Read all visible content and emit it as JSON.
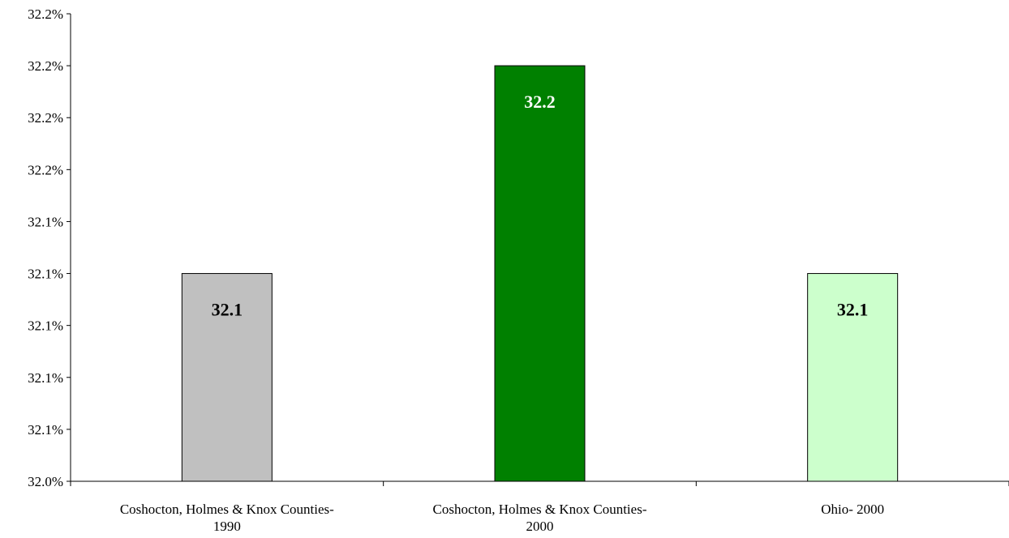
{
  "chart_data": {
    "type": "bar",
    "title": "",
    "xlabel": "",
    "ylabel": "",
    "categories": [
      [
        "Coshocton, Holmes & Knox Counties-",
        "1990"
      ],
      [
        "Coshocton, Holmes & Knox Counties-",
        "2000"
      ],
      [
        "Ohio- 2000"
      ]
    ],
    "values": [
      32.1,
      32.2,
      32.1
    ],
    "data_labels": [
      "32.1",
      "32.2",
      "32.1"
    ],
    "bar_colors": [
      "#c0c0c0",
      "#008000",
      "#ccffcc"
    ],
    "data_label_colors": [
      "#000000",
      "#ffffff",
      "#000000"
    ],
    "y_tick_labels": [
      "32.0%",
      "32.1%",
      "32.1%",
      "32.1%",
      "32.1%",
      "32.1%",
      "32.2%",
      "32.2%",
      "32.2%",
      "32.2%"
    ],
    "ylim": [
      32.0,
      32.225
    ],
    "y_tick_step": 0.025,
    "grid": false,
    "legend": "none"
  }
}
